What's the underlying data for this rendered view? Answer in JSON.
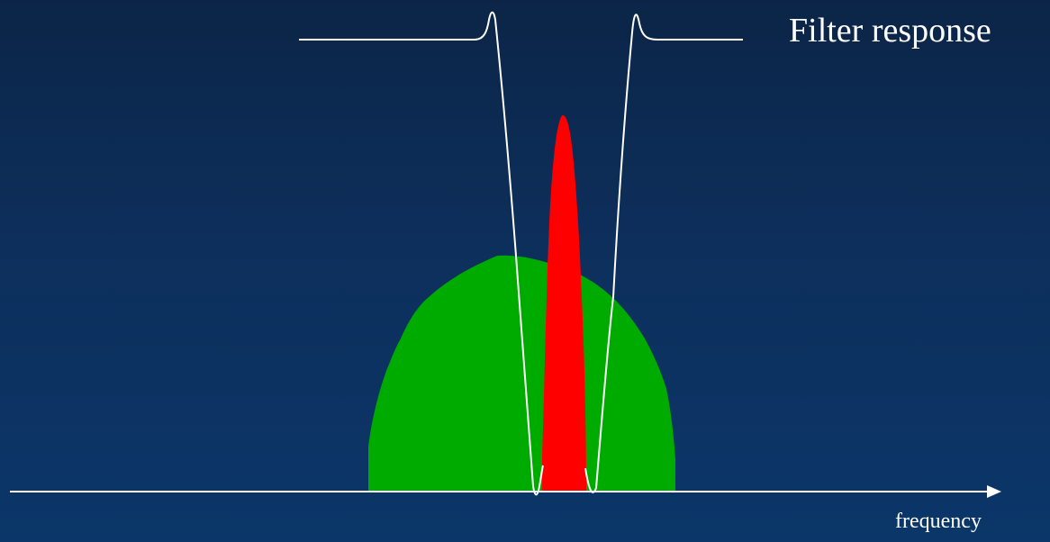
{
  "diagram": {
    "filter_label": "Filter response",
    "axis_label": "frequency",
    "colors": {
      "background_top": "#0c2547",
      "background_bottom": "#0b3669",
      "broad_spectrum": "#00ab00",
      "narrow_peak": "#ff0000",
      "lines": "#ffffff"
    }
  }
}
